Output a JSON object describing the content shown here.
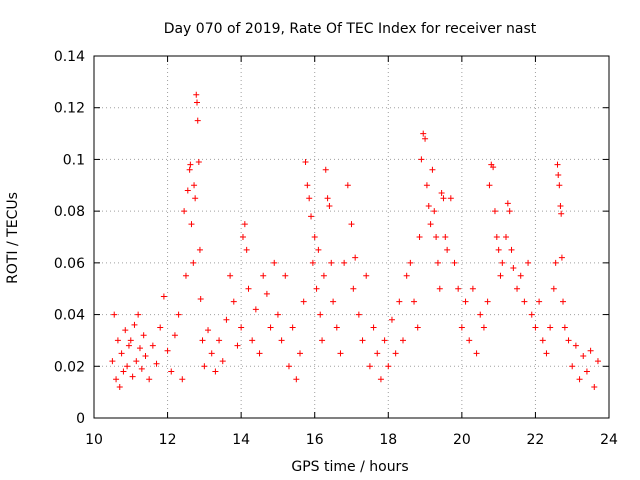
{
  "chart_data": {
    "type": "scatter",
    "title": "Day 070 of 2019, Rate Of TEC Index for receiver nast",
    "xlabel": "GPS time / hours",
    "ylabel": "ROTI / TECUs",
    "xlim": [
      10,
      24
    ],
    "ylim": [
      0,
      0.14
    ],
    "xticks": [
      10,
      12,
      14,
      16,
      18,
      20,
      22,
      24
    ],
    "xtick_labels": [
      "10",
      "12",
      "14",
      "16",
      "18",
      "20",
      "22",
      "24"
    ],
    "yticks": [
      0,
      0.02,
      0.04,
      0.06,
      0.08,
      0.1,
      0.12,
      0.14
    ],
    "ytick_labels": [
      "0",
      "0.02",
      "0.04",
      "0.06",
      "0.08",
      "0.1",
      "0.12",
      "0.14"
    ],
    "grid": true,
    "marker": "plus",
    "color": "#ff0000",
    "series": [
      {
        "name": "ROTI",
        "points": [
          [
            10.5,
            0.022
          ],
          [
            10.55,
            0.04
          ],
          [
            10.6,
            0.015
          ],
          [
            10.65,
            0.03
          ],
          [
            10.7,
            0.012
          ],
          [
            10.75,
            0.025
          ],
          [
            10.8,
            0.018
          ],
          [
            10.85,
            0.034
          ],
          [
            10.9,
            0.02
          ],
          [
            10.95,
            0.028
          ],
          [
            11.0,
            0.03
          ],
          [
            11.05,
            0.016
          ],
          [
            11.1,
            0.036
          ],
          [
            11.15,
            0.022
          ],
          [
            11.2,
            0.04
          ],
          [
            11.25,
            0.027
          ],
          [
            11.3,
            0.019
          ],
          [
            11.35,
            0.032
          ],
          [
            11.4,
            0.024
          ],
          [
            11.5,
            0.015
          ],
          [
            11.6,
            0.028
          ],
          [
            11.7,
            0.021
          ],
          [
            11.8,
            0.035
          ],
          [
            11.9,
            0.047
          ],
          [
            12.0,
            0.026
          ],
          [
            12.1,
            0.018
          ],
          [
            12.2,
            0.032
          ],
          [
            12.3,
            0.04
          ],
          [
            12.4,
            0.015
          ],
          [
            12.45,
            0.08
          ],
          [
            12.5,
            0.055
          ],
          [
            12.55,
            0.088
          ],
          [
            12.6,
            0.096
          ],
          [
            12.62,
            0.098
          ],
          [
            12.65,
            0.075
          ],
          [
            12.7,
            0.06
          ],
          [
            12.72,
            0.09
          ],
          [
            12.75,
            0.085
          ],
          [
            12.78,
            0.125
          ],
          [
            12.8,
            0.122
          ],
          [
            12.82,
            0.115
          ],
          [
            12.85,
            0.099
          ],
          [
            12.88,
            0.065
          ],
          [
            12.9,
            0.046
          ],
          [
            12.95,
            0.03
          ],
          [
            13.0,
            0.02
          ],
          [
            13.1,
            0.034
          ],
          [
            13.2,
            0.025
          ],
          [
            13.3,
            0.018
          ],
          [
            13.4,
            0.03
          ],
          [
            13.5,
            0.022
          ],
          [
            13.6,
            0.038
          ],
          [
            13.7,
            0.055
          ],
          [
            13.8,
            0.045
          ],
          [
            13.9,
            0.028
          ],
          [
            14.0,
            0.035
          ],
          [
            14.05,
            0.07
          ],
          [
            14.1,
            0.075
          ],
          [
            14.15,
            0.065
          ],
          [
            14.2,
            0.05
          ],
          [
            14.3,
            0.03
          ],
          [
            14.4,
            0.042
          ],
          [
            14.5,
            0.025
          ],
          [
            14.6,
            0.055
          ],
          [
            14.7,
            0.048
          ],
          [
            14.8,
            0.035
          ],
          [
            14.9,
            0.06
          ],
          [
            15.0,
            0.04
          ],
          [
            15.1,
            0.03
          ],
          [
            15.2,
            0.055
          ],
          [
            15.3,
            0.02
          ],
          [
            15.4,
            0.035
          ],
          [
            15.5,
            0.015
          ],
          [
            15.6,
            0.025
          ],
          [
            15.7,
            0.045
          ],
          [
            15.75,
            0.099
          ],
          [
            15.8,
            0.09
          ],
          [
            15.85,
            0.085
          ],
          [
            15.9,
            0.078
          ],
          [
            15.95,
            0.06
          ],
          [
            16.0,
            0.07
          ],
          [
            16.05,
            0.05
          ],
          [
            16.1,
            0.065
          ],
          [
            16.15,
            0.04
          ],
          [
            16.2,
            0.03
          ],
          [
            16.25,
            0.055
          ],
          [
            16.3,
            0.096
          ],
          [
            16.35,
            0.085
          ],
          [
            16.4,
            0.082
          ],
          [
            16.45,
            0.06
          ],
          [
            16.5,
            0.045
          ],
          [
            16.6,
            0.035
          ],
          [
            16.7,
            0.025
          ],
          [
            16.8,
            0.06
          ],
          [
            16.9,
            0.09
          ],
          [
            17.0,
            0.075
          ],
          [
            17.05,
            0.05
          ],
          [
            17.1,
            0.062
          ],
          [
            17.2,
            0.04
          ],
          [
            17.3,
            0.03
          ],
          [
            17.4,
            0.055
          ],
          [
            17.5,
            0.02
          ],
          [
            17.6,
            0.035
          ],
          [
            17.7,
            0.025
          ],
          [
            17.8,
            0.015
          ],
          [
            17.9,
            0.03
          ],
          [
            18.0,
            0.02
          ],
          [
            18.1,
            0.038
          ],
          [
            18.2,
            0.025
          ],
          [
            18.3,
            0.045
          ],
          [
            18.4,
            0.03
          ],
          [
            18.5,
            0.055
          ],
          [
            18.6,
            0.06
          ],
          [
            18.7,
            0.045
          ],
          [
            18.8,
            0.035
          ],
          [
            18.85,
            0.07
          ],
          [
            18.9,
            0.1
          ],
          [
            18.95,
            0.11
          ],
          [
            19.0,
            0.108
          ],
          [
            19.05,
            0.09
          ],
          [
            19.1,
            0.082
          ],
          [
            19.15,
            0.075
          ],
          [
            19.2,
            0.096
          ],
          [
            19.25,
            0.08
          ],
          [
            19.3,
            0.07
          ],
          [
            19.35,
            0.06
          ],
          [
            19.4,
            0.05
          ],
          [
            19.45,
            0.087
          ],
          [
            19.5,
            0.085
          ],
          [
            19.55,
            0.07
          ],
          [
            19.6,
            0.065
          ],
          [
            19.7,
            0.085
          ],
          [
            19.8,
            0.06
          ],
          [
            19.9,
            0.05
          ],
          [
            20.0,
            0.035
          ],
          [
            20.1,
            0.045
          ],
          [
            20.2,
            0.03
          ],
          [
            20.3,
            0.05
          ],
          [
            20.4,
            0.025
          ],
          [
            20.5,
            0.04
          ],
          [
            20.6,
            0.035
          ],
          [
            20.7,
            0.045
          ],
          [
            20.75,
            0.09
          ],
          [
            20.8,
            0.098
          ],
          [
            20.85,
            0.097
          ],
          [
            20.9,
            0.08
          ],
          [
            20.95,
            0.07
          ],
          [
            21.0,
            0.065
          ],
          [
            21.05,
            0.055
          ],
          [
            21.1,
            0.06
          ],
          [
            21.2,
            0.07
          ],
          [
            21.25,
            0.083
          ],
          [
            21.3,
            0.08
          ],
          [
            21.35,
            0.065
          ],
          [
            21.4,
            0.058
          ],
          [
            21.5,
            0.05
          ],
          [
            21.6,
            0.055
          ],
          [
            21.7,
            0.045
          ],
          [
            21.8,
            0.06
          ],
          [
            21.9,
            0.04
          ],
          [
            22.0,
            0.035
          ],
          [
            22.1,
            0.045
          ],
          [
            22.2,
            0.03
          ],
          [
            22.3,
            0.025
          ],
          [
            22.4,
            0.035
          ],
          [
            22.5,
            0.05
          ],
          [
            22.55,
            0.06
          ],
          [
            22.6,
            0.098
          ],
          [
            22.62,
            0.094
          ],
          [
            22.65,
            0.09
          ],
          [
            22.68,
            0.082
          ],
          [
            22.7,
            0.079
          ],
          [
            22.72,
            0.062
          ],
          [
            22.75,
            0.045
          ],
          [
            22.8,
            0.035
          ],
          [
            22.9,
            0.03
          ],
          [
            23.0,
            0.02
          ],
          [
            23.1,
            0.028
          ],
          [
            23.2,
            0.015
          ],
          [
            23.3,
            0.024
          ],
          [
            23.4,
            0.018
          ],
          [
            23.5,
            0.026
          ],
          [
            23.6,
            0.012
          ],
          [
            23.7,
            0.022
          ]
        ]
      }
    ]
  }
}
